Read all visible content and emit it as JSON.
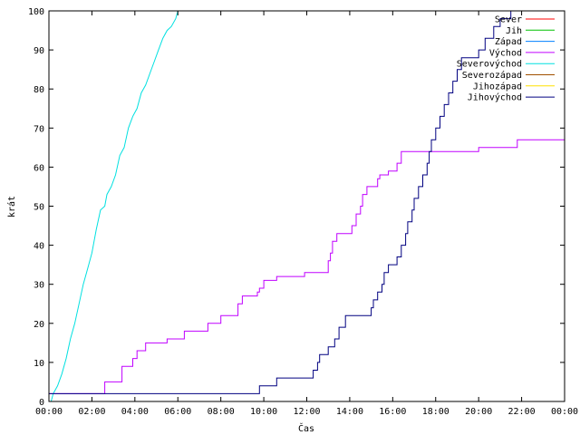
{
  "chart_data": {
    "type": "line",
    "xlabel": "Čas",
    "ylabel": "krát",
    "xlim": [
      0,
      24
    ],
    "ylim": [
      0,
      100
    ],
    "x_ticks": [
      {
        "value": 0,
        "label": "00:00"
      },
      {
        "value": 2,
        "label": "02:00"
      },
      {
        "value": 4,
        "label": "04:00"
      },
      {
        "value": 6,
        "label": "06:00"
      },
      {
        "value": 8,
        "label": "08:00"
      },
      {
        "value": 10,
        "label": "10:00"
      },
      {
        "value": 12,
        "label": "12:00"
      },
      {
        "value": 14,
        "label": "14:00"
      },
      {
        "value": 16,
        "label": "16:00"
      },
      {
        "value": 18,
        "label": "18:00"
      },
      {
        "value": 20,
        "label": "20:00"
      },
      {
        "value": 22,
        "label": "22:00"
      },
      {
        "value": 24,
        "label": "00:00"
      }
    ],
    "y_ticks": [
      0,
      10,
      20,
      30,
      40,
      50,
      60,
      70,
      80,
      90,
      100
    ],
    "legend_position": "top-right",
    "grid": false,
    "series": [
      {
        "name": "Sever",
        "color": "#ff0000",
        "points": []
      },
      {
        "name": "Jih",
        "color": "#00c000",
        "points": []
      },
      {
        "name": "Západ",
        "color": "#0080ff",
        "points": []
      },
      {
        "name": "Východ",
        "color": "#c000ff",
        "step": true,
        "points": [
          [
            0,
            2
          ],
          [
            2.6,
            2
          ],
          [
            2.6,
            5
          ],
          [
            3.4,
            5
          ],
          [
            3.4,
            9
          ],
          [
            3.9,
            9
          ],
          [
            3.9,
            11
          ],
          [
            4.1,
            11
          ],
          [
            4.1,
            13
          ],
          [
            4.5,
            13
          ],
          [
            4.5,
            15
          ],
          [
            5.5,
            15
          ],
          [
            5.5,
            16
          ],
          [
            6.3,
            16
          ],
          [
            6.3,
            18
          ],
          [
            7.4,
            18
          ],
          [
            7.4,
            20
          ],
          [
            8.0,
            20
          ],
          [
            8.0,
            22
          ],
          [
            8.8,
            22
          ],
          [
            8.8,
            25
          ],
          [
            9.0,
            25
          ],
          [
            9.0,
            27
          ],
          [
            9.7,
            27
          ],
          [
            9.7,
            28
          ],
          [
            9.8,
            28
          ],
          [
            9.8,
            29
          ],
          [
            10.0,
            29
          ],
          [
            10.0,
            31
          ],
          [
            10.6,
            31
          ],
          [
            10.6,
            32
          ],
          [
            11.9,
            32
          ],
          [
            11.9,
            33
          ],
          [
            13.0,
            33
          ],
          [
            13.0,
            36
          ],
          [
            13.1,
            36
          ],
          [
            13.1,
            38
          ],
          [
            13.2,
            38
          ],
          [
            13.2,
            41
          ],
          [
            13.4,
            41
          ],
          [
            13.4,
            43
          ],
          [
            14.1,
            43
          ],
          [
            14.1,
            45
          ],
          [
            14.3,
            45
          ],
          [
            14.3,
            48
          ],
          [
            14.5,
            48
          ],
          [
            14.5,
            50
          ],
          [
            14.6,
            50
          ],
          [
            14.6,
            53
          ],
          [
            14.8,
            53
          ],
          [
            14.8,
            55
          ],
          [
            15.3,
            55
          ],
          [
            15.3,
            57
          ],
          [
            15.4,
            57
          ],
          [
            15.4,
            58
          ],
          [
            15.8,
            58
          ],
          [
            15.8,
            59
          ],
          [
            16.2,
            59
          ],
          [
            16.2,
            61
          ],
          [
            16.4,
            61
          ],
          [
            16.4,
            64
          ],
          [
            20.0,
            64
          ],
          [
            20.0,
            65
          ],
          [
            21.8,
            65
          ],
          [
            21.8,
            67
          ],
          [
            24.0,
            67
          ]
        ]
      },
      {
        "name": "Severovýchod",
        "color": "#00e0e0",
        "points": [
          [
            0.1,
            0
          ],
          [
            0.2,
            2
          ],
          [
            0.4,
            4
          ],
          [
            0.6,
            7
          ],
          [
            0.8,
            11
          ],
          [
            1.0,
            16
          ],
          [
            1.2,
            20
          ],
          [
            1.4,
            25
          ],
          [
            1.6,
            30
          ],
          [
            1.8,
            34
          ],
          [
            2.0,
            38
          ],
          [
            2.2,
            44
          ],
          [
            2.4,
            49
          ],
          [
            2.6,
            50
          ],
          [
            2.7,
            53
          ],
          [
            2.9,
            55
          ],
          [
            3.1,
            58
          ],
          [
            3.3,
            63
          ],
          [
            3.5,
            65
          ],
          [
            3.7,
            70
          ],
          [
            3.9,
            73
          ],
          [
            4.1,
            75
          ],
          [
            4.3,
            79
          ],
          [
            4.5,
            81
          ],
          [
            4.7,
            84
          ],
          [
            4.9,
            87
          ],
          [
            5.1,
            90
          ],
          [
            5.3,
            93
          ],
          [
            5.5,
            95
          ],
          [
            5.7,
            96
          ],
          [
            5.9,
            98
          ],
          [
            6.0,
            100
          ]
        ]
      },
      {
        "name": "Severozápad",
        "color": "#a05000",
        "points": []
      },
      {
        "name": "Jihozápad",
        "color": "#ffe000",
        "points": []
      },
      {
        "name": "Jihovýchod",
        "color": "#000080",
        "step": true,
        "points": [
          [
            0,
            2
          ],
          [
            9.8,
            2
          ],
          [
            9.8,
            4
          ],
          [
            10.6,
            4
          ],
          [
            10.6,
            6
          ],
          [
            12.3,
            6
          ],
          [
            12.3,
            8
          ],
          [
            12.5,
            8
          ],
          [
            12.5,
            10
          ],
          [
            12.6,
            10
          ],
          [
            12.6,
            12
          ],
          [
            13.0,
            12
          ],
          [
            13.0,
            14
          ],
          [
            13.3,
            14
          ],
          [
            13.3,
            16
          ],
          [
            13.5,
            16
          ],
          [
            13.5,
            19
          ],
          [
            13.8,
            19
          ],
          [
            13.8,
            22
          ],
          [
            15.0,
            22
          ],
          [
            15.0,
            24
          ],
          [
            15.1,
            24
          ],
          [
            15.1,
            26
          ],
          [
            15.3,
            26
          ],
          [
            15.3,
            28
          ],
          [
            15.5,
            28
          ],
          [
            15.5,
            30
          ],
          [
            15.6,
            30
          ],
          [
            15.6,
            33
          ],
          [
            15.8,
            33
          ],
          [
            15.8,
            35
          ],
          [
            16.2,
            35
          ],
          [
            16.2,
            37
          ],
          [
            16.4,
            37
          ],
          [
            16.4,
            40
          ],
          [
            16.6,
            40
          ],
          [
            16.6,
            43
          ],
          [
            16.7,
            43
          ],
          [
            16.7,
            46
          ],
          [
            16.9,
            46
          ],
          [
            16.9,
            49
          ],
          [
            17.0,
            49
          ],
          [
            17.0,
            52
          ],
          [
            17.2,
            52
          ],
          [
            17.2,
            55
          ],
          [
            17.4,
            55
          ],
          [
            17.4,
            58
          ],
          [
            17.6,
            58
          ],
          [
            17.6,
            61
          ],
          [
            17.7,
            61
          ],
          [
            17.7,
            64
          ],
          [
            17.8,
            64
          ],
          [
            17.8,
            67
          ],
          [
            18.0,
            67
          ],
          [
            18.0,
            70
          ],
          [
            18.2,
            70
          ],
          [
            18.2,
            73
          ],
          [
            18.4,
            73
          ],
          [
            18.4,
            76
          ],
          [
            18.6,
            76
          ],
          [
            18.6,
            79
          ],
          [
            18.8,
            79
          ],
          [
            18.8,
            82
          ],
          [
            19.0,
            82
          ],
          [
            19.0,
            85
          ],
          [
            19.2,
            85
          ],
          [
            19.2,
            88
          ],
          [
            20.0,
            88
          ],
          [
            20.0,
            90
          ],
          [
            20.3,
            90
          ],
          [
            20.3,
            93
          ],
          [
            20.7,
            93
          ],
          [
            20.7,
            96
          ],
          [
            21.0,
            96
          ],
          [
            21.0,
            98
          ],
          [
            21.5,
            98
          ],
          [
            21.5,
            100
          ]
        ]
      }
    ]
  }
}
